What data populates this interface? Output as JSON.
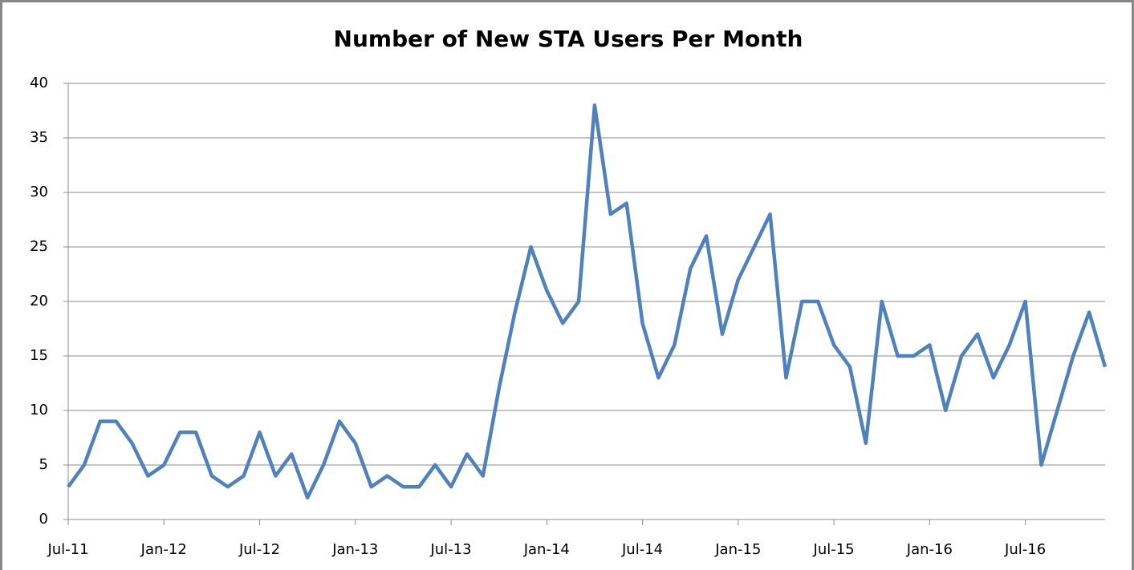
{
  "chart_data": {
    "type": "line",
    "title": "Number of New STA Users Per Month",
    "categories": [
      "Jul-11",
      null,
      null,
      null,
      null,
      null,
      "Jan-12",
      null,
      null,
      null,
      null,
      null,
      "Jul-12",
      null,
      null,
      null,
      null,
      null,
      "Jan-13",
      null,
      null,
      null,
      null,
      null,
      "Jul-13",
      null,
      null,
      null,
      null,
      null,
      "Jan-14",
      null,
      null,
      null,
      null,
      null,
      "Jul-14",
      null,
      null,
      null,
      null,
      null,
      "Jan-15",
      null,
      null,
      null,
      null,
      null,
      "Jul-15",
      null,
      null,
      null,
      null,
      null,
      "Jan-16",
      null,
      null,
      null,
      null,
      null,
      "Jul-16",
      null,
      null,
      null,
      null,
      null
    ],
    "series": [
      {
        "name": "New STA Users",
        "color": "#4f81bd",
        "values": [
          3,
          5,
          9,
          9,
          7,
          4,
          5,
          8,
          8,
          4,
          3,
          4,
          8,
          4,
          6,
          2,
          5,
          9,
          7,
          3,
          4,
          3,
          3,
          5,
          3,
          6,
          4,
          12,
          19,
          25,
          21,
          18,
          20,
          38,
          28,
          29,
          18,
          13,
          16,
          23,
          26,
          17,
          22,
          25,
          28,
          13,
          20,
          20,
          16,
          14,
          7,
          20,
          15,
          15,
          16,
          10,
          15,
          17,
          13,
          16,
          20,
          5,
          10,
          15,
          19,
          14
        ]
      }
    ],
    "ylim": [
      0,
      40
    ],
    "yticks": [
      0,
      5,
      10,
      15,
      20,
      25,
      30,
      35,
      40
    ],
    "grid": true
  }
}
